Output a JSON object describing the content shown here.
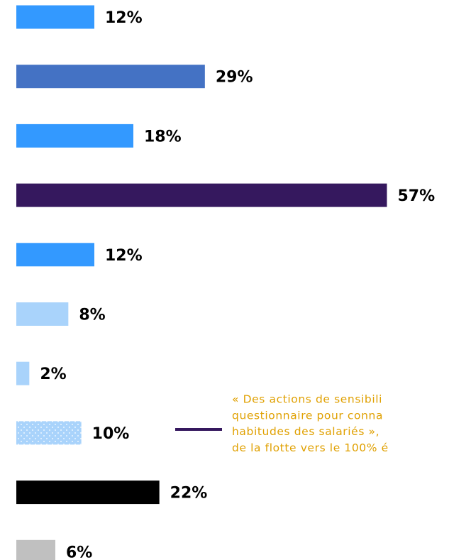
{
  "chart_data": {
    "type": "bar",
    "orientation": "horizontal",
    "values": [
      12,
      29,
      18,
      57,
      12,
      8,
      2,
      10,
      22,
      6
    ],
    "value_labels": [
      "12%",
      "29%",
      "18%",
      "57%",
      "12%",
      "8%",
      "2%",
      "10%",
      "22%",
      "6%"
    ],
    "colors": [
      "#3399ff",
      "#4472c4",
      "#3399ff",
      "#35185e",
      "#3399ff",
      "#a9d3fb",
      "#a9d3fb",
      "#a9d3fb",
      "#000000",
      "#c0c0c0"
    ],
    "patterns": [
      null,
      null,
      null,
      null,
      null,
      null,
      null,
      "dots",
      null,
      null
    ],
    "xlim": [
      0,
      60
    ],
    "annotation": {
      "lines": [
        "« Des actions de sensibili",
        "questionnaire pour conna",
        "habitudes des salariés »,",
        "de la flotte vers le 100% é"
      ],
      "color": "#e0a000",
      "line_color": "#35185e"
    }
  }
}
